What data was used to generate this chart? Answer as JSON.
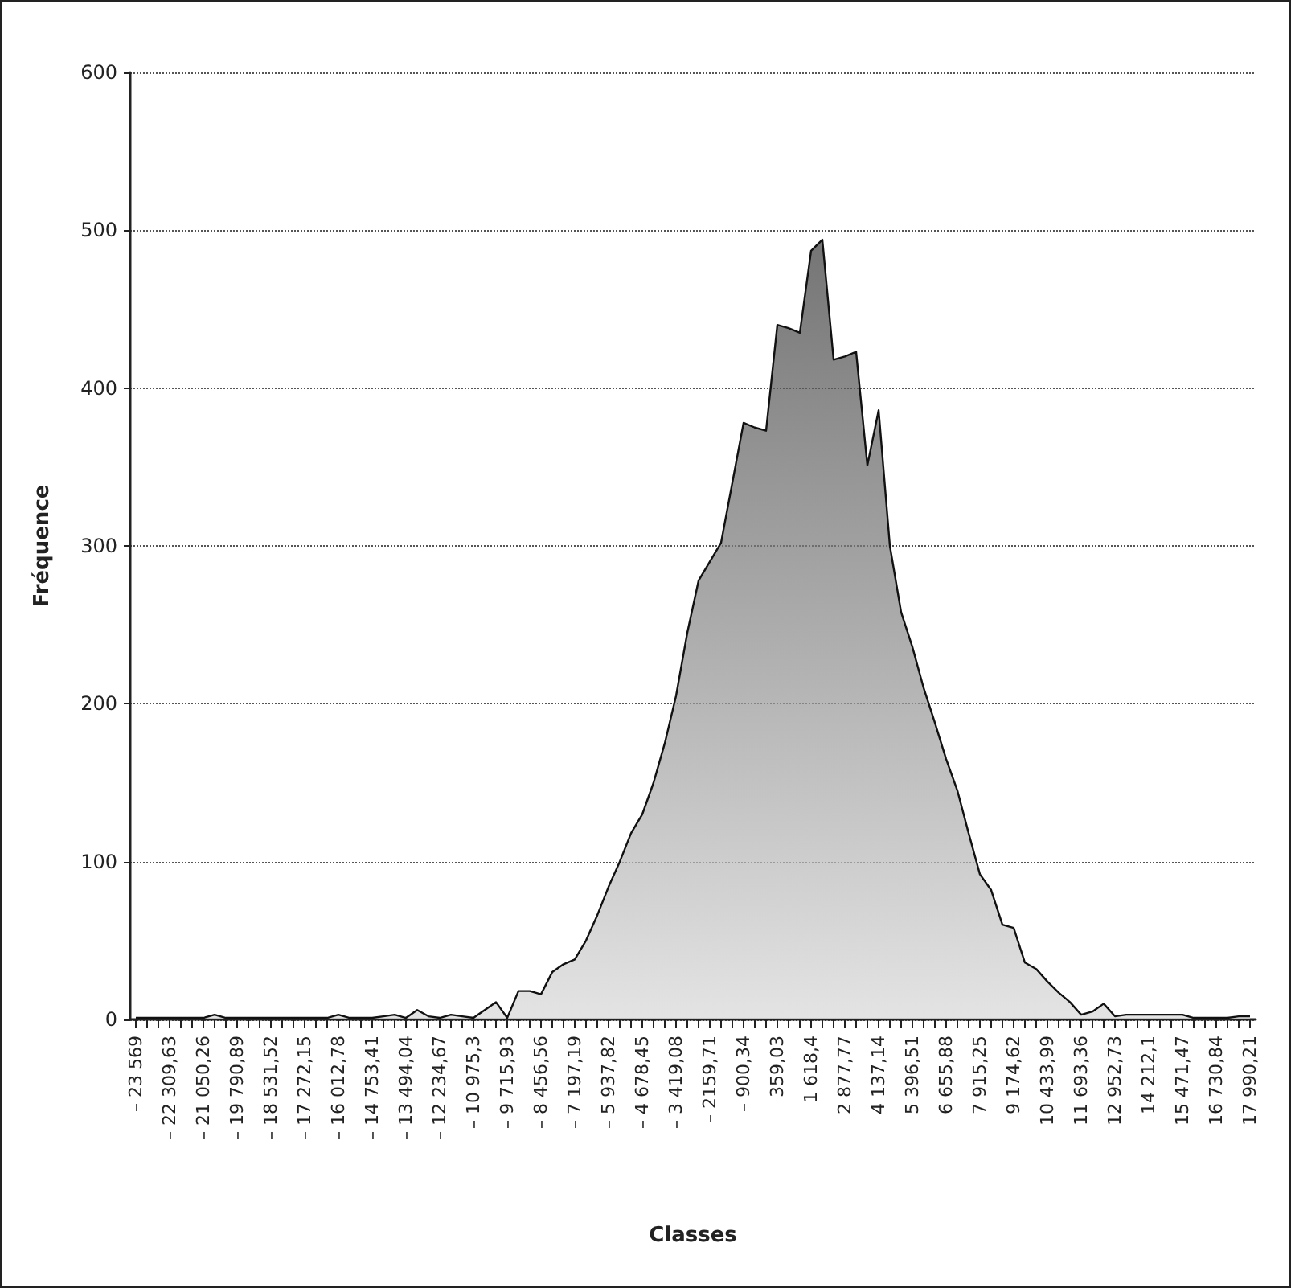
{
  "chart_data": {
    "type": "area",
    "xlabel": "Classes",
    "ylabel": "Fréquence",
    "categories": [
      "– 23 569",
      null,
      null,
      "– 22 309,63",
      null,
      null,
      "– 21 050,26",
      null,
      null,
      "– 19 790,89",
      null,
      null,
      "– 18 531,52",
      null,
      null,
      "– 17 272,15",
      null,
      null,
      "– 16 012,78",
      null,
      null,
      "– 14 753,41",
      null,
      null,
      "– 13 494,04",
      null,
      null,
      "– 12 234,67",
      null,
      null,
      "– 10 975,3",
      null,
      null,
      "– 9 715,93",
      null,
      null,
      "– 8 456,56",
      null,
      null,
      "– 7 197,19",
      null,
      null,
      "– 5 937,82",
      null,
      null,
      "– 4 678,45",
      null,
      null,
      "– 3 419,08",
      null,
      null,
      "– 2159,71",
      null,
      null,
      "– 900,34",
      null,
      null,
      "359,03",
      null,
      null,
      "1 618,4",
      null,
      null,
      "2 877,77",
      null,
      null,
      "4 137,14",
      null,
      null,
      "5 396,51",
      null,
      null,
      "6 655,88",
      null,
      null,
      "7 915,25",
      null,
      null,
      "9 174,62",
      null,
      null,
      "10 433,99",
      null,
      null,
      "11 693,36",
      null,
      null,
      "12 952,73",
      null,
      null,
      "14 212,1",
      null,
      null,
      "15 471,47",
      null,
      null,
      "16 730,84",
      null,
      null,
      "17 990,21"
    ],
    "series": [
      {
        "color": "#3a3a3a",
        "values": [
          1,
          1,
          1,
          1,
          1,
          1,
          1,
          3,
          1,
          1,
          1,
          1,
          1,
          1,
          1,
          1,
          1,
          1,
          3,
          1,
          1,
          1,
          2,
          3,
          1,
          6,
          2,
          1,
          3,
          2,
          1,
          6,
          11,
          1,
          18,
          18,
          16,
          30,
          35,
          38,
          50,
          66,
          84,
          100,
          118,
          130,
          150,
          175,
          205,
          245,
          278,
          290,
          302,
          340,
          378,
          375,
          373,
          440,
          438,
          435,
          487,
          494,
          418,
          420,
          423,
          351,
          386,
          300,
          258,
          236,
          210,
          188,
          165,
          145,
          118,
          92,
          82,
          60,
          58,
          36,
          32,
          24,
          17,
          11,
          3,
          5,
          10,
          2,
          3,
          3,
          3,
          3,
          3,
          3,
          1,
          1,
          1,
          1,
          2,
          2
        ]
      }
    ],
    "ylim": [
      0,
      600
    ],
    "yticks": [
      0,
      100,
      200,
      300,
      400,
      500,
      600
    ],
    "grid": "y"
  }
}
